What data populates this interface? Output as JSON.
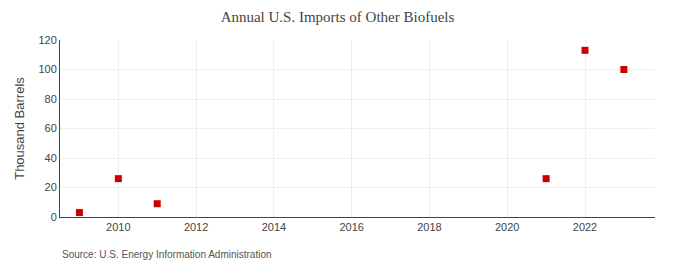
{
  "chart_data": {
    "type": "scatter",
    "title": "Annual U.S. Imports of Other Biofuels",
    "ylabel": "Thousand Barrels",
    "annotations": [
      "Source: U.S. Energy Information Administration"
    ],
    "x": [
      2009,
      2010,
      2011,
      2021,
      2022,
      2023
    ],
    "values": [
      3,
      26,
      9,
      26,
      113,
      100
    ],
    "color": "#cc0000",
    "marker": "square",
    "xlim": [
      2008.5,
      2023.8
    ],
    "ylim": [
      0,
      120
    ],
    "xticks": [
      2010,
      2012,
      2014,
      2016,
      2018,
      2020,
      2022
    ],
    "yticks": [
      0,
      20,
      40,
      60,
      80,
      100,
      120
    ],
    "grid": true
  }
}
